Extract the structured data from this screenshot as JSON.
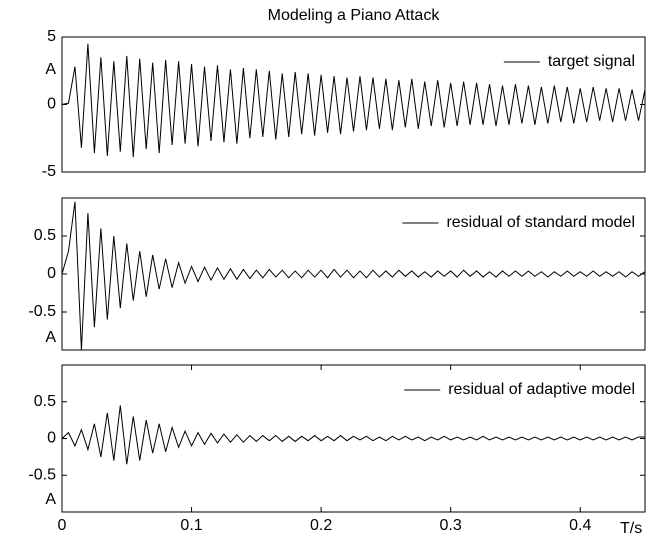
{
  "chart_data": [
    {
      "type": "line",
      "title": "Modeling a Piano Attack",
      "ylabel": "A",
      "x": [
        0,
        0.005,
        0.01,
        0.015,
        0.02,
        0.025,
        0.03,
        0.035,
        0.04,
        0.045,
        0.05,
        0.055,
        0.06,
        0.065,
        0.07,
        0.075,
        0.08,
        0.085,
        0.09,
        0.095,
        0.1,
        0.105,
        0.11,
        0.115,
        0.12,
        0.125,
        0.13,
        0.135,
        0.14,
        0.145,
        0.15,
        0.155,
        0.16,
        0.165,
        0.17,
        0.175,
        0.18,
        0.185,
        0.19,
        0.195,
        0.2,
        0.205,
        0.21,
        0.215,
        0.22,
        0.225,
        0.23,
        0.235,
        0.24,
        0.245,
        0.25,
        0.255,
        0.26,
        0.265,
        0.27,
        0.275,
        0.28,
        0.285,
        0.29,
        0.295,
        0.3,
        0.305,
        0.31,
        0.315,
        0.32,
        0.325,
        0.33,
        0.335,
        0.34,
        0.345,
        0.35,
        0.355,
        0.36,
        0.365,
        0.37,
        0.375,
        0.38,
        0.385,
        0.39,
        0.395,
        0.4,
        0.405,
        0.41,
        0.415,
        0.42,
        0.425,
        0.43,
        0.435,
        0.44,
        0.445,
        0.45
      ],
      "series": [
        {
          "name": "target signal",
          "color": "#000000",
          "values": [
            0,
            0.1,
            2.8,
            -3.2,
            4.5,
            -3.6,
            3.5,
            -3.8,
            3.2,
            -3.5,
            3.6,
            -3.9,
            3.4,
            -3.3,
            3.1,
            -3.6,
            3.3,
            -3.0,
            3.2,
            -2.9,
            3.0,
            -3.1,
            2.8,
            -2.7,
            2.9,
            -2.8,
            2.6,
            -2.9,
            2.7,
            -2.5,
            2.6,
            -2.4,
            2.5,
            -2.6,
            2.3,
            -2.4,
            2.4,
            -2.2,
            2.3,
            -2.3,
            2.2,
            -2.1,
            2.1,
            -2.2,
            2.0,
            -2.0,
            2.1,
            -1.9,
            2.0,
            -1.8,
            1.9,
            -1.9,
            1.8,
            -1.7,
            1.9,
            -1.8,
            1.7,
            -1.6,
            1.8,
            -1.7,
            1.6,
            -1.6,
            1.7,
            -1.5,
            1.6,
            -1.5,
            1.5,
            -1.6,
            1.4,
            -1.5,
            1.5,
            -1.4,
            1.4,
            -1.5,
            1.3,
            -1.4,
            1.4,
            -1.3,
            1.3,
            -1.4,
            1.2,
            -1.3,
            1.3,
            -1.2,
            1.2,
            -1.3,
            1.2,
            -1.2,
            1.1,
            -1.2,
            1.1
          ]
        }
      ],
      "xlim": [
        0,
        0.45
      ],
      "ylim": [
        -5,
        5
      ],
      "yticks": [
        -5,
        0,
        5
      ],
      "legend": "upper right"
    },
    {
      "type": "line",
      "ylabel": "A",
      "x": [
        0,
        0.005,
        0.01,
        0.015,
        0.02,
        0.025,
        0.03,
        0.035,
        0.04,
        0.045,
        0.05,
        0.055,
        0.06,
        0.065,
        0.07,
        0.075,
        0.08,
        0.085,
        0.09,
        0.095,
        0.1,
        0.105,
        0.11,
        0.115,
        0.12,
        0.125,
        0.13,
        0.135,
        0.14,
        0.145,
        0.15,
        0.155,
        0.16,
        0.165,
        0.17,
        0.175,
        0.18,
        0.185,
        0.19,
        0.195,
        0.2,
        0.205,
        0.21,
        0.215,
        0.22,
        0.225,
        0.23,
        0.235,
        0.24,
        0.245,
        0.25,
        0.255,
        0.26,
        0.265,
        0.27,
        0.275,
        0.28,
        0.285,
        0.29,
        0.295,
        0.3,
        0.305,
        0.31,
        0.315,
        0.32,
        0.325,
        0.33,
        0.335,
        0.34,
        0.345,
        0.35,
        0.355,
        0.36,
        0.365,
        0.37,
        0.375,
        0.38,
        0.385,
        0.39,
        0.395,
        0.4,
        0.405,
        0.41,
        0.415,
        0.42,
        0.425,
        0.43,
        0.435,
        0.44,
        0.445,
        0.45
      ],
      "series": [
        {
          "name": "residual of standard model",
          "color": "#000000",
          "values": [
            0,
            0.3,
            0.95,
            -1.0,
            0.8,
            -0.7,
            0.6,
            -0.6,
            0.5,
            -0.45,
            0.4,
            -0.35,
            0.3,
            -0.3,
            0.25,
            -0.2,
            0.2,
            -0.18,
            0.15,
            -0.12,
            0.1,
            -0.1,
            0.09,
            -0.08,
            0.08,
            -0.07,
            0.07,
            -0.07,
            0.06,
            -0.06,
            0.05,
            -0.05,
            0.06,
            -0.04,
            0.05,
            -0.05,
            0.04,
            -0.05,
            0.05,
            -0.04,
            0.05,
            -0.05,
            0.06,
            -0.04,
            0.05,
            -0.05,
            0.04,
            -0.05,
            0.05,
            -0.04,
            0.04,
            -0.04,
            0.05,
            -0.03,
            0.04,
            -0.04,
            0.03,
            -0.04,
            0.04,
            -0.03,
            0.04,
            -0.04,
            0.05,
            -0.03,
            0.04,
            -0.04,
            0.03,
            -0.04,
            0.04,
            -0.03,
            0.04,
            -0.03,
            0.04,
            -0.03,
            0.03,
            -0.04,
            0.03,
            -0.03,
            0.04,
            -0.03,
            0.03,
            -0.03,
            0.04,
            -0.03,
            0.03,
            -0.03,
            0.03,
            -0.04,
            0.03,
            -0.03,
            0.03
          ]
        }
      ],
      "xlim": [
        0,
        0.45
      ],
      "ylim": [
        -1,
        1
      ],
      "yticks": [
        -0.5,
        0,
        0.5
      ],
      "legend": "upper right"
    },
    {
      "type": "line",
      "ylabel": "A",
      "xlabel": "T/s",
      "x": [
        0,
        0.005,
        0.01,
        0.015,
        0.02,
        0.025,
        0.03,
        0.035,
        0.04,
        0.045,
        0.05,
        0.055,
        0.06,
        0.065,
        0.07,
        0.075,
        0.08,
        0.085,
        0.09,
        0.095,
        0.1,
        0.105,
        0.11,
        0.115,
        0.12,
        0.125,
        0.13,
        0.135,
        0.14,
        0.145,
        0.15,
        0.155,
        0.16,
        0.165,
        0.17,
        0.175,
        0.18,
        0.185,
        0.19,
        0.195,
        0.2,
        0.205,
        0.21,
        0.215,
        0.22,
        0.225,
        0.23,
        0.235,
        0.24,
        0.245,
        0.25,
        0.255,
        0.26,
        0.265,
        0.27,
        0.275,
        0.28,
        0.285,
        0.29,
        0.295,
        0.3,
        0.305,
        0.31,
        0.315,
        0.32,
        0.325,
        0.33,
        0.335,
        0.34,
        0.345,
        0.35,
        0.355,
        0.36,
        0.365,
        0.37,
        0.375,
        0.38,
        0.385,
        0.39,
        0.395,
        0.4,
        0.405,
        0.41,
        0.415,
        0.42,
        0.425,
        0.43,
        0.435,
        0.44,
        0.445,
        0.45
      ],
      "series": [
        {
          "name": "residual of adaptive model",
          "color": "#000000",
          "values": [
            0,
            0.08,
            -0.1,
            0.12,
            -0.15,
            0.2,
            -0.25,
            0.35,
            -0.3,
            0.45,
            -0.35,
            0.3,
            -0.3,
            0.25,
            -0.2,
            0.2,
            -0.18,
            0.15,
            -0.12,
            0.1,
            -0.1,
            0.08,
            -0.08,
            0.07,
            -0.06,
            0.06,
            -0.05,
            0.05,
            -0.05,
            0.04,
            -0.04,
            0.04,
            -0.03,
            0.04,
            -0.04,
            0.03,
            -0.04,
            0.03,
            -0.03,
            0.04,
            -0.03,
            0.03,
            -0.03,
            0.04,
            -0.03,
            0.03,
            -0.02,
            0.03,
            -0.03,
            0.02,
            -0.03,
            0.03,
            -0.02,
            0.03,
            -0.02,
            0.02,
            -0.03,
            0.02,
            -0.02,
            0.03,
            -0.02,
            0.02,
            -0.02,
            0.02,
            -0.02,
            0.03,
            -0.02,
            0.02,
            -0.02,
            0.02,
            -0.02,
            0.02,
            -0.02,
            0.02,
            -0.02,
            0.02,
            -0.02,
            0.02,
            -0.02,
            0.02,
            -0.02,
            0.02,
            -0.02,
            0.02,
            -0.02,
            0.02,
            -0.02,
            0.02,
            -0.02,
            0.02,
            0.02
          ]
        }
      ],
      "xlim": [
        0,
        0.45
      ],
      "ylim": [
        -1,
        1
      ],
      "xticks": [
        0,
        0.1,
        0.2,
        0.3,
        0.4
      ],
      "yticks": [
        -0.5,
        0,
        0.5
      ],
      "legend": "upper right"
    }
  ]
}
